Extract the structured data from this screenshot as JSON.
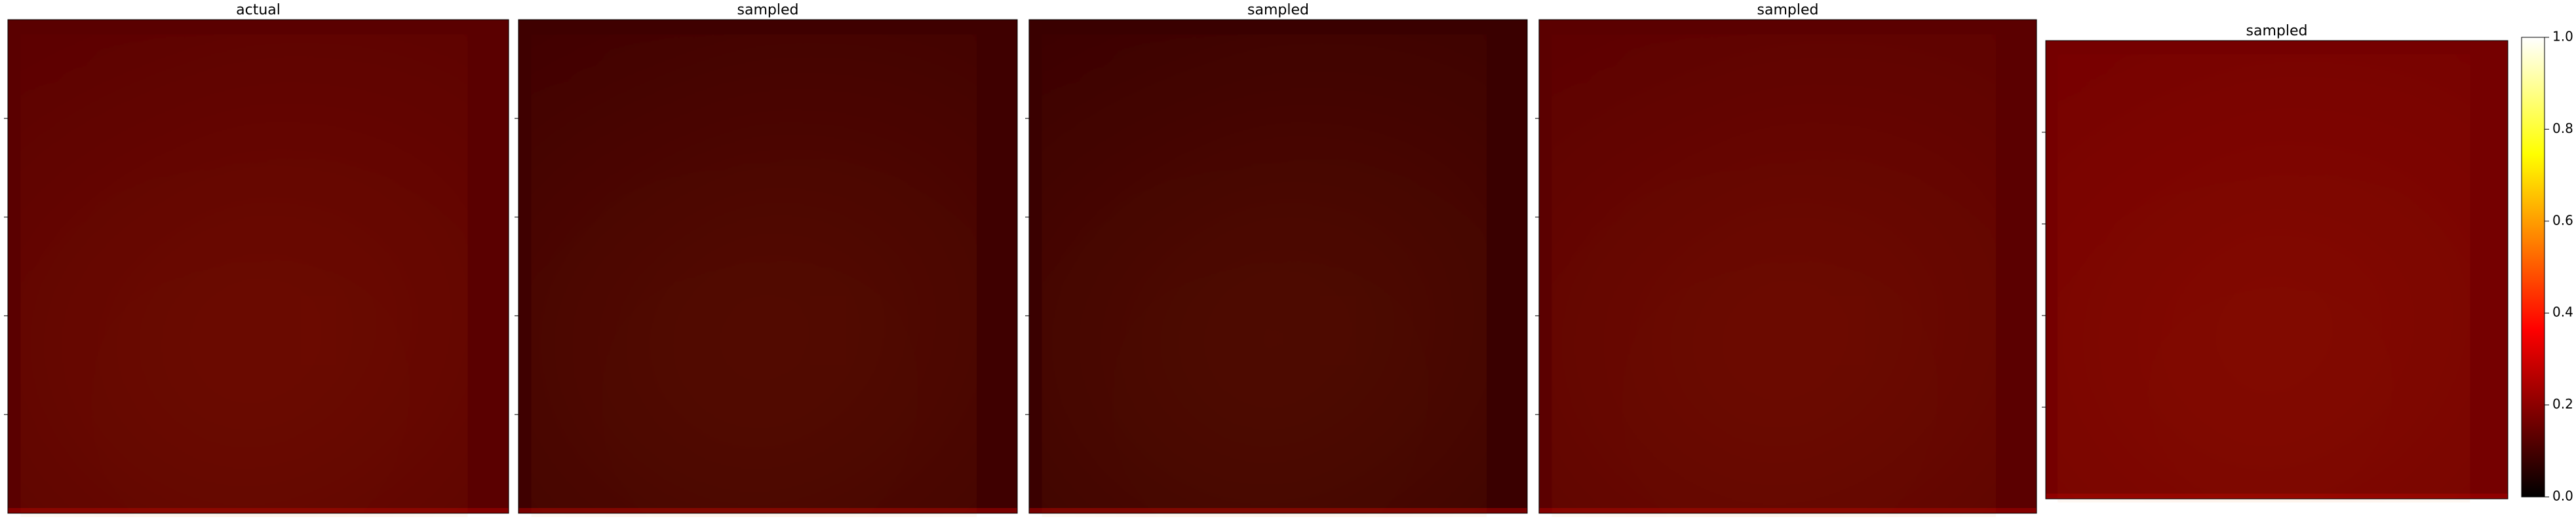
{
  "chart_data": {
    "type": "heatmap",
    "panels": [
      {
        "title": "actual"
      },
      {
        "title": "sampled"
      },
      {
        "title": "sampled"
      },
      {
        "title": "sampled"
      },
      {
        "title": "sampled"
      }
    ],
    "colormap": "hot",
    "colorbar": {
      "lim": [
        0,
        1
      ],
      "ticks": [
        {
          "value": 0,
          "label": "0.0"
        },
        {
          "value": 0.2,
          "label": "0.2"
        },
        {
          "value": 0.4,
          "label": "0.4"
        },
        {
          "value": 0.6,
          "label": "0.6"
        },
        {
          "value": 0.8,
          "label": "0.8"
        },
        {
          "value": 1,
          "label": "1.0"
        }
      ]
    }
  }
}
